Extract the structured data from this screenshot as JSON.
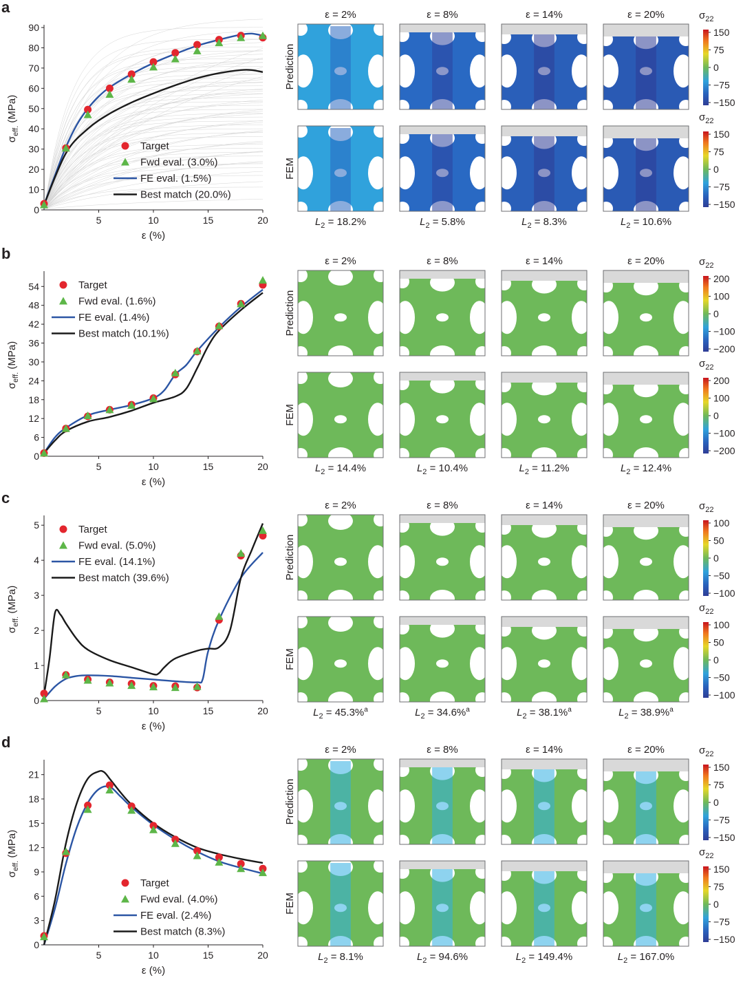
{
  "colors": {
    "target": "#e3262e",
    "fwd": "#5db648",
    "fe": "#2b55a4",
    "best": "#1a1a1a",
    "background_curves": "#d4d4d4"
  },
  "panels": [
    {
      "letter": "a",
      "strain_titles": [
        "ε = 2%",
        "ε = 8%",
        "ε = 14%",
        "ε = 20%"
      ],
      "row_labels": [
        "Prediction",
        "FEM"
      ],
      "colorbar_ticks": [
        "150",
        "75",
        "0",
        "−75",
        "−150"
      ],
      "l2_values": [
        "18.2%",
        "5.8%",
        "8.3%",
        "10.6%"
      ],
      "l2_superscript": "",
      "stress_level": [
        0.32,
        0.18,
        0.14,
        0.12
      ]
    },
    {
      "letter": "b",
      "strain_titles": [
        "ε = 2%",
        "ε = 8%",
        "ε = 14%",
        "ε = 20%"
      ],
      "row_labels": [
        "Prediction",
        "FEM"
      ],
      "colorbar_ticks": [
        "200",
        "100",
        "0",
        "−100",
        "−200"
      ],
      "l2_values": [
        "14.4%",
        "10.4%",
        "11.2%",
        "12.4%"
      ],
      "l2_superscript": "",
      "stress_level": [
        0.5,
        0.5,
        0.5,
        0.5
      ]
    },
    {
      "letter": "c",
      "strain_titles": [
        "ε = 2%",
        "ε = 8%",
        "ε = 14%",
        "ε = 20%"
      ],
      "row_labels": [
        "Prediction",
        "FEM"
      ],
      "colorbar_ticks": [
        "100",
        "50",
        "0",
        "−50",
        "−100"
      ],
      "l2_values": [
        "45.3%",
        "34.6%",
        "38.1%",
        "38.9%"
      ],
      "l2_superscript": "a",
      "stress_level": [
        0.5,
        0.5,
        0.5,
        0.5
      ]
    },
    {
      "letter": "d",
      "strain_titles": [
        "ε = 2%",
        "ε = 8%",
        "ε = 14%",
        "ε = 20%"
      ],
      "row_labels": [
        "Prediction",
        "FEM"
      ],
      "colorbar_ticks": [
        "150",
        "75",
        "0",
        "−75",
        "−150"
      ],
      "l2_values": [
        "8.1%",
        "94.6%",
        "149.4%",
        "167.0%"
      ],
      "l2_superscript": "",
      "stress_level": [
        0.5,
        0.5,
        0.5,
        0.5
      ]
    }
  ],
  "chart_data": [
    {
      "type": "line",
      "panel": "a",
      "xlabel": "ε (%)",
      "ylabel": "σ_eff. (MPa)",
      "ylabel_main": "σ",
      "ylabel_sub": "eff.",
      "ylabel_unit": "(MPa)",
      "xlim": [
        0,
        20
      ],
      "ylim": [
        0,
        90
      ],
      "xticks": [
        5,
        10,
        15,
        20
      ],
      "yticks": [
        0,
        10,
        20,
        30,
        40,
        50,
        60,
        70,
        80,
        90
      ],
      "background_curves": true,
      "legend": [
        "Target",
        "Fwd eval. (3.0%)",
        "FE eval. (1.5%)",
        "Best match (20.0%)"
      ],
      "legend_placement": "lower-center",
      "series": [
        {
          "name": "Target",
          "kind": "marker-circle",
          "x": [
            0,
            2,
            4,
            6,
            8,
            10,
            12,
            14,
            16,
            18,
            20
          ],
          "y": [
            3,
            30.5,
            49.5,
            60,
            67,
            73,
            77.5,
            81.5,
            84,
            86,
            85
          ]
        },
        {
          "name": "Fwd eval. (3.0%)",
          "kind": "marker-triangle",
          "x": [
            0,
            2,
            4,
            6,
            8,
            10,
            12,
            14,
            16,
            18,
            20
          ],
          "y": [
            2.5,
            30.5,
            47,
            57,
            64.5,
            70.5,
            74.5,
            78.5,
            82.5,
            85,
            86
          ]
        },
        {
          "name": "FE eval. (1.5%)",
          "kind": "line",
          "x": [
            0,
            1,
            2,
            3,
            4,
            5,
            6,
            8,
            10,
            12,
            14,
            16,
            18,
            19,
            20
          ],
          "y": [
            2.5,
            17,
            31,
            42,
            50,
            56,
            60.5,
            67,
            72.5,
            77,
            81,
            84,
            86.5,
            87,
            86
          ]
        },
        {
          "name": "Best match (20.0%)",
          "kind": "line",
          "x": [
            0,
            2,
            4,
            6,
            8,
            10,
            12,
            14,
            16,
            18,
            19,
            20
          ],
          "y": [
            2.5,
            28,
            40,
            47.5,
            53,
            57.5,
            61.5,
            65,
            67.5,
            69,
            69,
            68
          ]
        }
      ]
    },
    {
      "type": "line",
      "panel": "b",
      "xlabel": "ε (%)",
      "ylabel": "σ_eff. (MPa)",
      "ylabel_main": "σ",
      "ylabel_sub": "eff.",
      "ylabel_unit": "(MPa)",
      "xlim": [
        0,
        20
      ],
      "ylim": [
        0,
        58
      ],
      "xticks": [
        5,
        10,
        15,
        20
      ],
      "yticks": [
        0,
        6,
        12,
        18,
        24,
        30,
        36,
        42,
        48,
        54
      ],
      "background_curves": false,
      "legend": [
        "Target",
        "Fwd eval. (1.6%)",
        "FE eval. (1.4%)",
        "Best match (10.1%)"
      ],
      "legend_placement": "top-left",
      "series": [
        {
          "name": "Target",
          "kind": "marker-circle",
          "x": [
            0,
            2,
            4,
            6,
            8,
            10,
            12,
            14,
            16,
            18,
            20
          ],
          "y": [
            1,
            8.8,
            12.7,
            14.8,
            16.4,
            18.5,
            26,
            33.3,
            41.3,
            48.5,
            54.5
          ]
        },
        {
          "name": "Fwd eval. (1.6%)",
          "kind": "marker-triangle",
          "x": [
            0,
            2,
            4,
            6,
            8,
            10,
            12,
            14,
            16,
            18,
            20
          ],
          "y": [
            1,
            8.8,
            12.9,
            14.8,
            16.2,
            18.3,
            26.5,
            33.5,
            41.5,
            48.5,
            56
          ]
        },
        {
          "name": "FE eval. (1.4%)",
          "kind": "line",
          "x": [
            0,
            1,
            2,
            4,
            6,
            8,
            10,
            11,
            12,
            13,
            14,
            16,
            18,
            20
          ],
          "y": [
            1,
            6,
            9,
            13,
            14.8,
            16.3,
            18.5,
            21,
            26,
            29,
            33.5,
            41,
            47.5,
            53
          ]
        },
        {
          "name": "Best match (10.1%)",
          "kind": "line",
          "x": [
            0,
            1,
            2,
            4,
            6,
            8,
            10,
            12,
            13,
            14,
            15,
            16,
            18,
            20
          ],
          "y": [
            1,
            5,
            8,
            11,
            12.5,
            14.5,
            17,
            19,
            21.5,
            28,
            35,
            40,
            46.5,
            52
          ]
        }
      ]
    },
    {
      "type": "line",
      "panel": "c",
      "xlabel": "ε (%)",
      "ylabel": "σ_eff. (MPa)",
      "ylabel_main": "σ",
      "ylabel_sub": "eff.",
      "ylabel_unit": "(MPa)",
      "xlim": [
        0,
        20
      ],
      "ylim": [
        0,
        5.2
      ],
      "xticks": [
        5,
        10,
        15,
        20
      ],
      "yticks": [
        0,
        1,
        2,
        3,
        4,
        5
      ],
      "background_curves": false,
      "legend": [
        "Target",
        "Fwd eval. (5.0%)",
        "FE eval. (14.1%)",
        "Best match (39.6%)"
      ],
      "legend_placement": "top-left",
      "series": [
        {
          "name": "Target",
          "kind": "marker-circle",
          "x": [
            0,
            2,
            4,
            6,
            8,
            10,
            12,
            14,
            16,
            18,
            20
          ],
          "y": [
            0.2,
            0.73,
            0.6,
            0.52,
            0.48,
            0.42,
            0.41,
            0.37,
            2.3,
            4.13,
            4.7
          ]
        },
        {
          "name": "Fwd eval. (5.0%)",
          "kind": "marker-triangle",
          "x": [
            0,
            2,
            4,
            6,
            8,
            10,
            12,
            14,
            16,
            18,
            20
          ],
          "y": [
            0.05,
            0.73,
            0.58,
            0.5,
            0.43,
            0.39,
            0.37,
            0.4,
            2.4,
            4.2,
            4.85
          ]
        },
        {
          "name": "FE eval. (14.1%)",
          "kind": "line",
          "x": [
            0,
            1,
            2,
            3,
            4,
            6,
            8,
            10,
            12,
            14,
            14.5,
            15,
            16,
            18,
            20
          ],
          "y": [
            0.05,
            0.4,
            0.62,
            0.7,
            0.72,
            0.7,
            0.65,
            0.6,
            0.55,
            0.52,
            0.6,
            1.4,
            2.3,
            3.5,
            4.22
          ]
        },
        {
          "name": "Best match (39.6%)",
          "kind": "line",
          "x": [
            0,
            0.5,
            1,
            1.5,
            2,
            3,
            4,
            6,
            8,
            10,
            10.5,
            11,
            12,
            14,
            15,
            16,
            17,
            18,
            19,
            20
          ],
          "y": [
            0.15,
            1.2,
            2.5,
            2.45,
            2.2,
            1.75,
            1.45,
            1.15,
            0.95,
            0.75,
            0.78,
            0.95,
            1.2,
            1.42,
            1.48,
            1.52,
            2.0,
            3.5,
            4.3,
            5.05
          ]
        }
      ]
    },
    {
      "type": "line",
      "panel": "d",
      "xlabel": "ε (%)",
      "ylabel": "σ_eff. (MPa)",
      "ylabel_main": "σ",
      "ylabel_sub": "eff.",
      "ylabel_unit": "(MPa)",
      "xlim": [
        0,
        20
      ],
      "ylim": [
        0,
        22.5
      ],
      "xticks": [
        5,
        10,
        15,
        20
      ],
      "yticks": [
        0,
        3,
        6,
        9,
        12,
        15,
        18,
        21
      ],
      "background_curves": false,
      "legend": [
        "Target",
        "Fwd eval. (4.0%)",
        "FE eval. (2.4%)",
        "Best match (8.3%)"
      ],
      "legend_placement": "lower-center",
      "series": [
        {
          "name": "Target",
          "kind": "marker-circle",
          "x": [
            0,
            2,
            4,
            6,
            8,
            10,
            12,
            14,
            16,
            18,
            20
          ],
          "y": [
            1.1,
            11.3,
            17.2,
            19.7,
            17.1,
            14.7,
            13,
            11.6,
            10.8,
            10,
            9.4
          ]
        },
        {
          "name": "Fwd eval. (4.0%)",
          "kind": "marker-triangle",
          "x": [
            0,
            2,
            4,
            6,
            8,
            10,
            12,
            14,
            16,
            18,
            20
          ],
          "y": [
            1,
            11.5,
            16.7,
            19.1,
            16.6,
            14.2,
            12.5,
            11,
            10.2,
            9.4,
            8.9
          ]
        },
        {
          "name": "FE eval. (2.4%)",
          "kind": "line",
          "x": [
            0,
            1,
            2,
            3,
            4,
            5,
            6,
            7,
            8,
            10,
            12,
            14,
            16,
            18,
            20
          ],
          "y": [
            0,
            4.5,
            10,
            14.5,
            17.5,
            19.2,
            19.5,
            18.3,
            17,
            14.8,
            13,
            11.5,
            10.3,
            9.5,
            8.8
          ]
        },
        {
          "name": "Best match (8.3%)",
          "kind": "line",
          "x": [
            0,
            1,
            2,
            3,
            4,
            5,
            5.5,
            6,
            7,
            8,
            10,
            12,
            14,
            16,
            18,
            20
          ],
          "y": [
            0,
            5.5,
            12.5,
            17.5,
            20.5,
            21.4,
            21.3,
            20.5,
            18.8,
            17.3,
            15,
            13.3,
            12,
            11.2,
            10.6,
            10.1
          ]
        }
      ]
    }
  ]
}
